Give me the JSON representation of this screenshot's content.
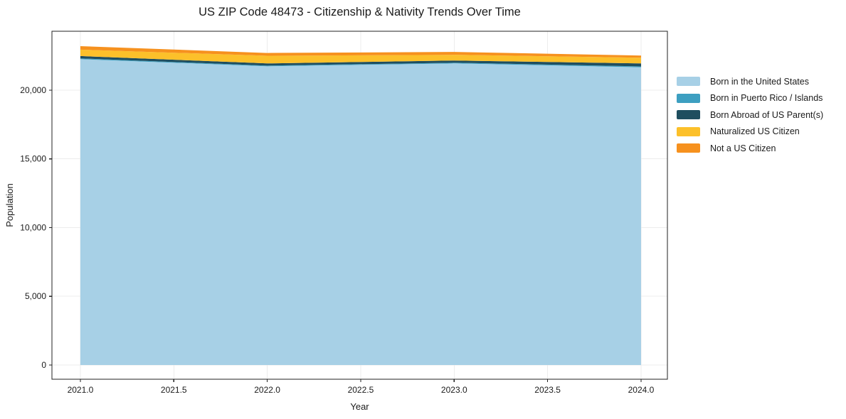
{
  "chart_data": {
    "type": "area",
    "stacked": true,
    "title": "US ZIP Code 48473 - Citizenship & Nativity Trends Over Time",
    "xlabel": "Year",
    "ylabel": "Population",
    "x": [
      2021,
      2022,
      2023,
      2024
    ],
    "series": [
      {
        "name": "Born in the United States",
        "color": "#a7d0e6",
        "values": [
          22260,
          21740,
          21950,
          21670
        ]
      },
      {
        "name": "Born in Puerto Rico / Islands",
        "color": "#3d9fc1",
        "values": [
          55,
          50,
          50,
          60
        ]
      },
      {
        "name": "Born Abroad of US Parent(s)",
        "color": "#1f4e5f",
        "values": [
          170,
          160,
          160,
          220
        ]
      },
      {
        "name": "Naturalized US Citizen",
        "color": "#fcc02a",
        "values": [
          465,
          555,
          415,
          415
        ]
      },
      {
        "name": "Not a US Citizen",
        "color": "#f6911e",
        "values": [
          255,
          205,
          210,
          155
        ]
      }
    ],
    "totals": [
      23205,
      22710,
      22785,
      22520
    ],
    "xtick_values": [
      2021.0,
      2021.5,
      2022.0,
      2022.5,
      2023.0,
      2023.5,
      2024.0
    ],
    "xtick_labels": [
      "2021.0",
      "2021.5",
      "2022.0",
      "2022.5",
      "2023.0",
      "2023.5",
      "2024.0"
    ],
    "ytick_values": [
      0,
      5000,
      10000,
      15000,
      20000
    ],
    "ytick_labels": [
      "0",
      "5,000",
      "10,000",
      "15,000",
      "20,000"
    ],
    "xlim": [
      2020.848,
      2024.141
    ],
    "ylim": [
      -1035,
      24290
    ],
    "grid": true,
    "grid_color": "#ececec",
    "axis_color": "#222222",
    "background_color": "#ffffff",
    "legend_position": "right-outside"
  }
}
